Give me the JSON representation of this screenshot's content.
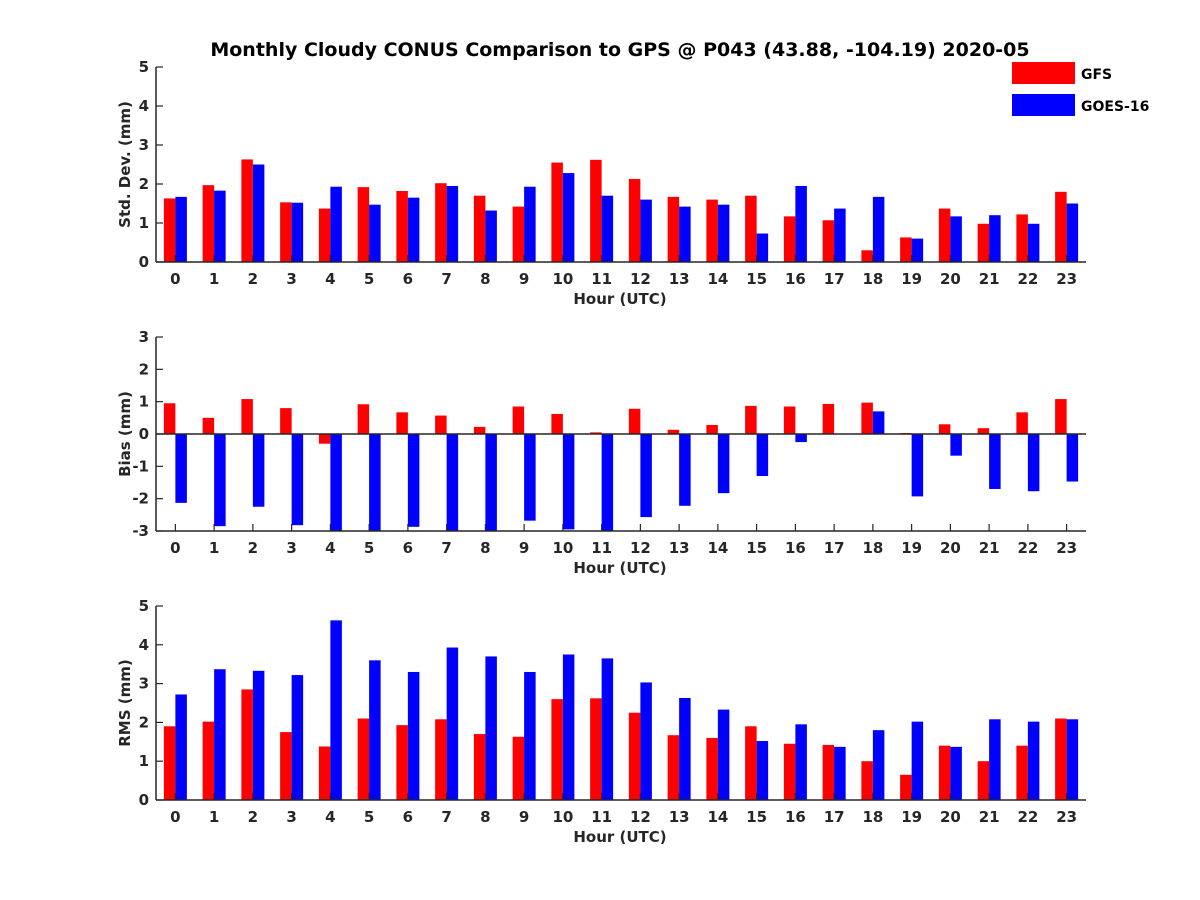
{
  "title": "Monthly Cloudy CONUS Comparison to GPS @ P043 (43.88, -104.19) 2020-05",
  "legend": {
    "placement": "top-right",
    "items": [
      {
        "label": "GFS",
        "color": "#ff0000"
      },
      {
        "label": "GOES-16",
        "color": "#0000ff"
      }
    ]
  },
  "chart_data": [
    {
      "type": "bar",
      "ylabel": "Std. Dev. (mm)",
      "xlabel": "Hour (UTC)",
      "ylim": [
        0,
        5
      ],
      "yticks": [
        0,
        1,
        2,
        3,
        4,
        5
      ],
      "categories": [
        "0",
        "1",
        "2",
        "3",
        "4",
        "5",
        "6",
        "7",
        "8",
        "9",
        "10",
        "11",
        "12",
        "13",
        "14",
        "15",
        "16",
        "17",
        "18",
        "19",
        "20",
        "21",
        "22",
        "23"
      ],
      "series": [
        {
          "name": "GFS",
          "color": "#ff0000",
          "values": [
            1.63,
            1.97,
            2.63,
            1.53,
            1.37,
            1.92,
            1.82,
            2.02,
            1.7,
            1.42,
            2.55,
            2.62,
            2.13,
            1.67,
            1.6,
            1.7,
            1.17,
            1.07,
            0.3,
            0.63,
            1.37,
            0.98,
            1.22,
            1.8
          ]
        },
        {
          "name": "GOES-16",
          "color": "#0000ff",
          "values": [
            1.67,
            1.83,
            2.5,
            1.52,
            1.93,
            1.47,
            1.65,
            1.95,
            1.32,
            1.93,
            2.28,
            1.7,
            1.6,
            1.42,
            1.47,
            0.73,
            1.95,
            1.37,
            1.67,
            0.6,
            1.17,
            1.2,
            0.98,
            1.5
          ]
        }
      ]
    },
    {
      "type": "bar",
      "ylabel": "Bias (mm)",
      "xlabel": "Hour (UTC)",
      "ylim": [
        -3,
        3
      ],
      "yticks": [
        -3,
        -2,
        -1,
        0,
        1,
        2,
        3
      ],
      "categories": [
        "0",
        "1",
        "2",
        "3",
        "4",
        "5",
        "6",
        "7",
        "8",
        "9",
        "10",
        "11",
        "12",
        "13",
        "14",
        "15",
        "16",
        "17",
        "18",
        "19",
        "20",
        "21",
        "22",
        "23"
      ],
      "series": [
        {
          "name": "GFS",
          "color": "#ff0000",
          "values": [
            0.95,
            0.5,
            1.08,
            0.8,
            -0.3,
            0.92,
            0.67,
            0.57,
            0.22,
            0.85,
            0.62,
            0.05,
            0.78,
            0.13,
            0.28,
            0.87,
            0.85,
            0.93,
            0.97,
            0.03,
            0.3,
            0.18,
            0.67,
            1.08
          ]
        },
        {
          "name": "GOES-16",
          "color": "#0000ff",
          "values": [
            -2.13,
            -2.85,
            -2.25,
            -2.82,
            -3.0,
            -3.0,
            -2.87,
            -3.0,
            -3.0,
            -2.68,
            -2.95,
            -3.0,
            -2.57,
            -2.22,
            -1.83,
            -1.3,
            -0.25,
            0.0,
            0.7,
            -1.93,
            -0.67,
            -1.7,
            -1.77,
            -1.47
          ]
        }
      ]
    },
    {
      "type": "bar",
      "ylabel": "RMS (mm)",
      "xlabel": "Hour (UTC)",
      "ylim": [
        0,
        5
      ],
      "yticks": [
        0,
        1,
        2,
        3,
        4,
        5
      ],
      "categories": [
        "0",
        "1",
        "2",
        "3",
        "4",
        "5",
        "6",
        "7",
        "8",
        "9",
        "10",
        "11",
        "12",
        "13",
        "14",
        "15",
        "16",
        "17",
        "18",
        "19",
        "20",
        "21",
        "22",
        "23"
      ],
      "series": [
        {
          "name": "GFS",
          "color": "#ff0000",
          "values": [
            1.9,
            2.02,
            2.85,
            1.75,
            1.38,
            2.1,
            1.93,
            2.08,
            1.7,
            1.63,
            2.6,
            2.62,
            2.25,
            1.67,
            1.6,
            1.9,
            1.45,
            1.42,
            1.0,
            0.65,
            1.4,
            1.0,
            1.4,
            2.1
          ]
        },
        {
          "name": "GOES-16",
          "color": "#0000ff",
          "values": [
            2.72,
            3.37,
            3.33,
            3.22,
            4.63,
            3.6,
            3.3,
            3.93,
            3.7,
            3.3,
            3.75,
            3.65,
            3.03,
            2.63,
            2.33,
            1.52,
            1.95,
            1.37,
            1.8,
            2.02,
            1.37,
            2.08,
            2.02,
            2.08
          ]
        }
      ]
    }
  ]
}
